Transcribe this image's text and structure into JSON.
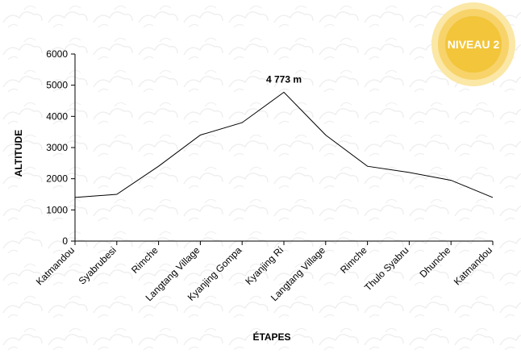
{
  "chart_data": {
    "type": "line",
    "xlabel": "ÉTAPES",
    "ylabel": "ALTITUDE",
    "ylim": [
      0,
      6000
    ],
    "yticks": [
      "0",
      "1000",
      "2000",
      "3000",
      "4000",
      "5000",
      "6000"
    ],
    "grid": false,
    "categories": [
      "Katmandou",
      "Syabrubesi",
      "Rimche",
      "Langtang Village",
      "Kyanjing Gompa",
      "Kyanjing Ri",
      "Langtang Village",
      "Rimche",
      "Thulo Syabru",
      "Dhunche",
      "Katmandou"
    ],
    "values": [
      1400,
      1500,
      2400,
      3400,
      3800,
      4773,
      3400,
      2400,
      2200,
      1950,
      1400
    ],
    "annotation": {
      "text": "4 773  m",
      "category_index": 5
    },
    "line_color": "#000000"
  },
  "badge": {
    "text": "NIVEAU 2",
    "color": "#f2c53a"
  }
}
